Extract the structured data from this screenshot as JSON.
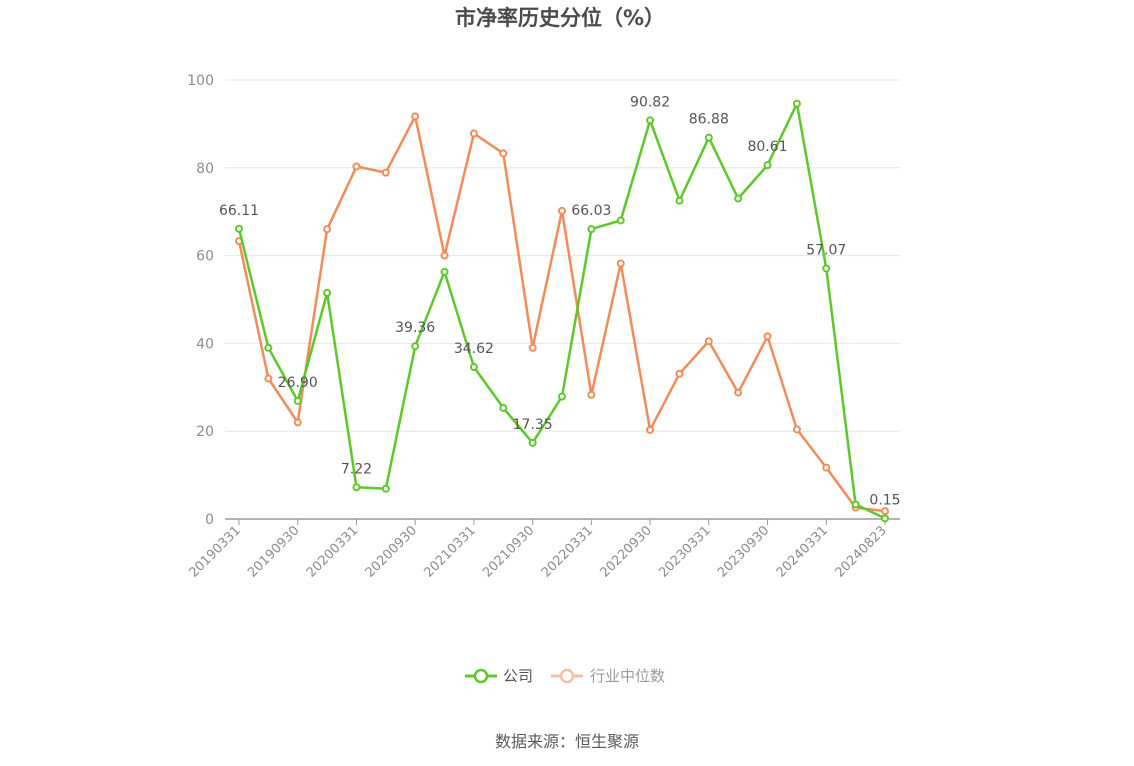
{
  "chart_data": {
    "type": "line",
    "title": "市净率历史分位（%）",
    "source": "数据来源：恒生聚源",
    "ylim": [
      0,
      100
    ],
    "yticks": [
      0,
      20,
      40,
      60,
      80,
      100
    ],
    "x": [
      "20190331",
      "20190630",
      "20190930",
      "20191231",
      "20200331",
      "20200630",
      "20200930",
      "20201231",
      "20210331",
      "20210630",
      "20210930",
      "20211231",
      "20220331",
      "20220630",
      "20220930",
      "20221231",
      "20230331",
      "20230630",
      "20230930",
      "20231231",
      "20240331",
      "20240630",
      "20240823"
    ],
    "x_tick_labels": [
      "20190331",
      "20190930",
      "20200331",
      "20200930",
      "20210331",
      "20210930",
      "20220331",
      "20220930",
      "20230331",
      "20230930",
      "20240331",
      "20240823"
    ],
    "grid": true,
    "legend_position": "bottom-center",
    "series": [
      {
        "name": "公司",
        "color": "#5cc82a",
        "values": [
          66.11,
          39.0,
          26.9,
          51.5,
          7.22,
          6.9,
          39.36,
          56.3,
          34.62,
          25.3,
          17.35,
          27.9,
          66.03,
          68.0,
          90.82,
          72.5,
          86.88,
          73.0,
          80.61,
          94.6,
          57.07,
          3.3,
          0.15
        ],
        "labels": {
          "0": "66.11",
          "2": "26.90",
          "4": "7.22",
          "6": "39.36",
          "8": "34.62",
          "10": "17.35",
          "12": "66.03",
          "14": "90.82",
          "16": "86.88",
          "18": "80.61",
          "20": "57.07",
          "22": "0.15"
        }
      },
      {
        "name": "行业中位数",
        "color": "#f08c5a",
        "values": [
          63.3,
          32.0,
          22.0,
          66.0,
          80.3,
          78.9,
          91.7,
          60.0,
          87.8,
          83.3,
          39.0,
          70.2,
          28.3,
          58.2,
          20.3,
          33.1,
          40.5,
          28.8,
          41.6,
          20.4,
          11.7,
          2.6,
          1.8
        ]
      }
    ]
  }
}
